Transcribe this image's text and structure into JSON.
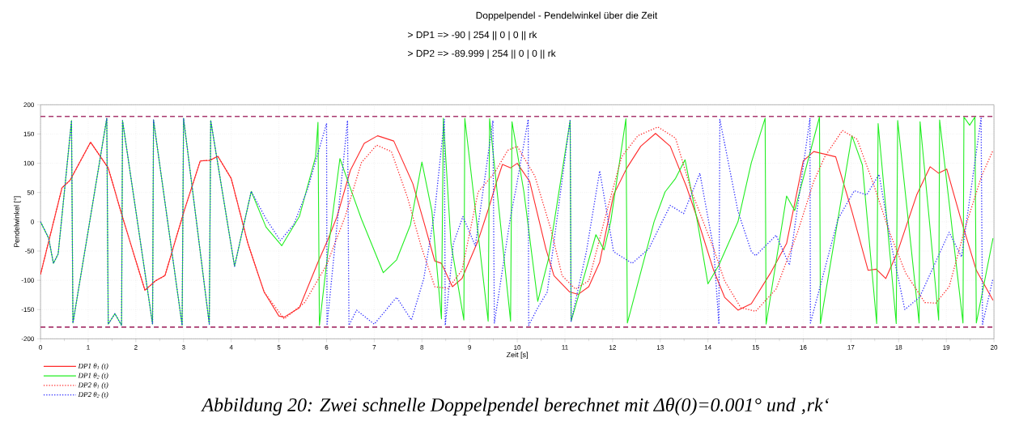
{
  "chart_data": {
    "type": "line",
    "title": "Doppelpendel - Pendelwinkel über die Zeit",
    "xlabel": "Zeit [s]",
    "ylabel": "Pendelwinkel [°]",
    "annotations": [
      ">   DP1 => -90        | 254 || 0 | 0 || rk",
      ">   DP2 => -89.999 | 254 || 0 | 0 || rk",
      "Abbildung 20:  Zwei schnelle Doppelpendel berechnet mit Δθ(0)=0.001° und ‚rk‘"
    ],
    "xlim": [
      0,
      20
    ],
    "ylim": [
      -200,
      200
    ],
    "xticks": [
      0,
      1,
      2,
      3,
      4,
      5,
      6,
      7,
      8,
      9,
      10,
      11,
      12,
      13,
      14,
      15,
      16,
      17,
      18,
      19,
      20
    ],
    "yticks": [
      -200,
      -150,
      -100,
      -50,
      0,
      50,
      100,
      150,
      200
    ],
    "grid": true,
    "legend": "bottom left",
    "ref_lines": [
      {
        "axis": "y",
        "value": 180,
        "color": "#a8386e",
        "line_style": "dashed"
      },
      {
        "axis": "y",
        "value": -180,
        "color": "#a8386e",
        "line_style": "dashed"
      }
    ],
    "series": [
      {
        "name": "DP1 θ$_{1}$ (t)",
        "color": "#ff2a2a",
        "line_style": "solid",
        "x": [
          0,
          0.45,
          0.62,
          1.05,
          1.42,
          1.73,
          2.19,
          2.41,
          2.61,
          3.01,
          3.35,
          3.55,
          3.72,
          4.0,
          4.35,
          4.69,
          5.0,
          5.11,
          5.43,
          5.82,
          6.02,
          6.22,
          6.5,
          6.79,
          7.07,
          7.41,
          7.81,
          8.04,
          8.27,
          8.41,
          8.64,
          8.84,
          9.18,
          9.4,
          9.57,
          9.69,
          9.86,
          10.0,
          10.26,
          10.6,
          10.77,
          11.1,
          11.28,
          11.5,
          11.73,
          12.02,
          12.3,
          12.59,
          12.9,
          13.21,
          13.55,
          13.78,
          14.12,
          14.35,
          14.63,
          14.91,
          15.31,
          15.65,
          16.0,
          16.22,
          16.68,
          17.02,
          17.36,
          17.53,
          17.73,
          17.98,
          18.38,
          18.66,
          18.84,
          19.01,
          19.29,
          19.63,
          19.98
        ],
        "values": [
          -90,
          58,
          71,
          136,
          92,
          5,
          -117,
          -101,
          -92,
          18,
          104,
          105,
          112,
          74,
          -37,
          -120,
          -161,
          -163,
          -147,
          -69,
          -32,
          9,
          88,
          134,
          147,
          138,
          65,
          0,
          -67,
          -71,
          -111,
          -97,
          -32,
          23,
          69,
          98,
          92,
          100,
          69,
          -46,
          -92,
          -120,
          -124,
          -111,
          -69,
          46,
          92,
          129,
          151,
          129,
          60,
          5,
          -83,
          -129,
          -151,
          -140,
          -88,
          -37,
          104,
          120,
          111,
          18,
          -83,
          -81,
          -97,
          -51,
          46,
          94,
          83,
          90,
          9,
          -83,
          -134
        ]
      },
      {
        "name": "DP1 θ$_{2}$ (t)",
        "color": "#22ee22",
        "line_style": "solid",
        "x": [
          0,
          0.17,
          0.27,
          0.37,
          0.65,
          0.68,
          1.39,
          1.42,
          1.56,
          1.7,
          1.72,
          2.35,
          2.37,
          2.97,
          3.0,
          3.54,
          3.57,
          4.07,
          4.42,
          4.73,
          5.06,
          5.43,
          5.77,
          5.82,
          5.85,
          6.05,
          6.28,
          6.51,
          6.73,
          7.19,
          7.47,
          7.76,
          8.0,
          8.21,
          8.41,
          8.45,
          8.61,
          8.88,
          8.9,
          9.39,
          9.42,
          9.86,
          9.89,
          10.14,
          10.43,
          10.65,
          11.11,
          11.13,
          11.39,
          11.65,
          11.82,
          11.96,
          12.28,
          12.31,
          12.87,
          13.1,
          13.32,
          13.52,
          13.78,
          14.0,
          14.23,
          14.63,
          14.91,
          15.2,
          15.22,
          15.65,
          15.82,
          16.34,
          16.36,
          17.02,
          17.24,
          17.54,
          17.57,
          17.95,
          17.98,
          18.43,
          18.45,
          18.84,
          18.86,
          19.35,
          19.37,
          19.49,
          19.6,
          19.63,
          19.98
        ],
        "values": [
          0,
          -28,
          -71,
          -55,
          173,
          -173,
          177,
          -175,
          -157,
          -177,
          173,
          -175,
          174,
          -177,
          177,
          -175,
          173,
          -76,
          52,
          -9,
          -41,
          9,
          111,
          170,
          -177,
          -37,
          108,
          55,
          5,
          -87,
          -65,
          -5,
          102,
          18,
          -166,
          177,
          -37,
          -168,
          177,
          -170,
          176,
          -170,
          171,
          51,
          -136,
          -65,
          173,
          -170,
          -97,
          -22,
          -48,
          0,
          176,
          -173,
          0,
          51,
          74,
          106,
          0,
          -106,
          -74,
          0,
          101,
          177,
          -175,
          44,
          19,
          179,
          -174,
          147,
          97,
          -174,
          168,
          -174,
          173,
          -173,
          171,
          -168,
          174,
          -173,
          179,
          165,
          179,
          -173,
          -28
        ]
      },
      {
        "name": "DP2 θ$_{1}$ (t)",
        "color": "#ff2a2a",
        "line_style": "dotted",
        "x": [
          0,
          0.45,
          0.62,
          1.05,
          1.42,
          1.73,
          2.19,
          2.41,
          2.61,
          3.01,
          3.35,
          3.55,
          3.72,
          4.0,
          4.35,
          4.69,
          5.11,
          5.54,
          6.0,
          6.39,
          6.73,
          7.05,
          7.36,
          7.7,
          7.98,
          8.27,
          8.55,
          8.84,
          9.18,
          9.52,
          9.8,
          10.0,
          10.37,
          10.71,
          10.94,
          11.22,
          11.5,
          11.85,
          12.19,
          12.53,
          12.95,
          13.32,
          13.66,
          14.12,
          14.35,
          14.69,
          15.0,
          15.43,
          15.88,
          16.22,
          16.45,
          16.82,
          17.13,
          17.47,
          17.81,
          18.15,
          18.55,
          18.78,
          19.06,
          19.4,
          19.74,
          19.98
        ],
        "values": [
          -90,
          58,
          71,
          136,
          92,
          5,
          -117,
          -101,
          -92,
          18,
          104,
          105,
          112,
          74,
          -37,
          -120,
          -166,
          -138,
          -74,
          9,
          101,
          131,
          120,
          41,
          -41,
          -111,
          -114,
          -83,
          51,
          83,
          122,
          129,
          78,
          -14,
          -92,
          -115,
          -101,
          9,
          111,
          147,
          162,
          143,
          51,
          -46,
          -101,
          -147,
          -153,
          -115,
          -18,
          69,
          111,
          156,
          141,
          65,
          -18,
          -88,
          -138,
          -139,
          -111,
          -9,
          78,
          122
        ]
      },
      {
        "name": "DP2 θ$_{2}$ (t)",
        "color": "#2a2aff",
        "line_style": "dotted",
        "x": [
          0,
          0.17,
          0.27,
          0.37,
          0.65,
          0.68,
          1.39,
          1.42,
          1.56,
          1.7,
          1.72,
          2.35,
          2.37,
          2.97,
          3.0,
          3.54,
          3.57,
          4.07,
          4.42,
          4.73,
          5.03,
          5.31,
          5.6,
          6.0,
          6.01,
          6.22,
          6.44,
          6.47,
          6.63,
          7.0,
          7.47,
          7.78,
          8.04,
          8.27,
          8.47,
          8.49,
          8.66,
          8.86,
          9.12,
          9.49,
          9.52,
          9.86,
          9.97,
          10.23,
          10.24,
          10.43,
          10.63,
          11.11,
          11.13,
          11.45,
          11.73,
          12.02,
          12.41,
          12.76,
          13.21,
          13.49,
          13.83,
          14.12,
          14.23,
          14.25,
          14.63,
          14.91,
          15.0,
          15.43,
          15.71,
          16.14,
          16.15,
          16.73,
          17.07,
          17.33,
          17.59,
          17.84,
          18.13,
          18.44,
          19.06,
          19.32,
          19.73,
          19.76,
          19.98
        ],
        "values": [
          0,
          -28,
          -71,
          -55,
          173,
          -173,
          177,
          -175,
          -157,
          -177,
          173,
          -175,
          174,
          -177,
          177,
          -175,
          173,
          -76,
          52,
          5,
          -32,
          -5,
          55,
          168,
          -177,
          -5,
          173,
          -177,
          -151,
          -175,
          -129,
          -168,
          -97,
          18,
          175,
          -177,
          -37,
          9,
          -41,
          173,
          -173,
          9,
          55,
          175,
          -177,
          -147,
          -120,
          175,
          -170,
          -51,
          87,
          -51,
          -71,
          -46,
          28,
          14,
          83,
          -46,
          -175,
          175,
          18,
          -51,
          -58,
          -23,
          -74,
          177,
          -173,
          5,
          53,
          46,
          81,
          -37,
          -150,
          -129,
          -18,
          -60,
          177,
          -175,
          -97
        ]
      }
    ]
  }
}
